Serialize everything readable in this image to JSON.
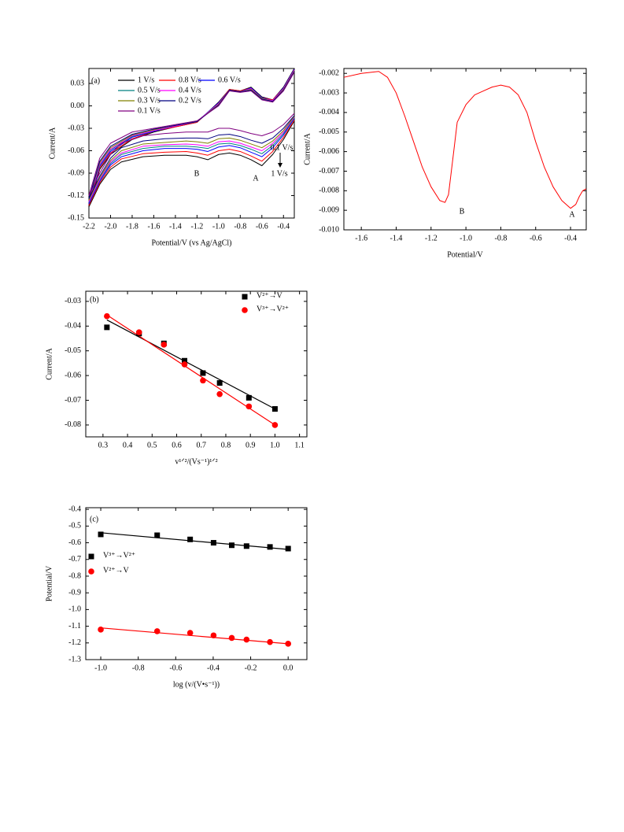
{
  "chart_data": [
    {
      "type": "line",
      "y_label": "Current/A",
      "x_label": "Potential/V (vs Ag/AgCl)",
      "xlim": [
        -2.2,
        -0.3
      ],
      "ylim": [
        -0.15,
        0.05
      ],
      "xticks": [
        -2.2,
        {
          "value": -2,
          "label": "-2.0"
        },
        -1.8,
        -1.6,
        -1.4,
        -1.2,
        {
          "value": -1,
          "label": "-1.0"
        },
        -0.8,
        -0.6,
        -0.4
      ],
      "yticks": [
        0.03,
        {
          "value": 0,
          "label": "0.00"
        },
        -0.03,
        -0.06,
        -0.09,
        -0.12,
        -0.15
      ],
      "annotations": [
        "(a)",
        "B",
        "A",
        "0.1 V/s",
        "1 V/s"
      ],
      "x": [
        -0.3,
        -0.4,
        -0.5,
        -0.6,
        -0.7,
        -0.8,
        -0.9,
        -1.0,
        -1.1,
        -1.2,
        -1.3,
        -1.5,
        -1.7,
        -1.9,
        -2.0,
        -2.1,
        -2.2,
        -2.1,
        -2.0,
        -1.8,
        -1.6,
        -1.4,
        -1.2,
        -1.0,
        -0.9,
        -0.8,
        -0.7,
        -0.6,
        -0.5,
        -0.4,
        -0.3
      ],
      "series": [
        {
          "name": "1 V/s",
          "color": "#000000",
          "values": [
            -0.02,
            -0.045,
            -0.065,
            -0.08,
            -0.072,
            -0.066,
            -0.063,
            -0.065,
            -0.072,
            -0.068,
            -0.066,
            -0.066,
            -0.068,
            -0.075,
            -0.085,
            -0.105,
            -0.135,
            -0.085,
            -0.065,
            -0.045,
            -0.035,
            -0.028,
            -0.022,
            0.005,
            0.022,
            0.02,
            0.025,
            0.012,
            0.008,
            0.025,
            0.05
          ]
        },
        {
          "name": "0.8 V/s",
          "color": "#ff0000",
          "values": [
            -0.019,
            -0.042,
            -0.061,
            -0.074,
            -0.067,
            -0.061,
            -0.058,
            -0.06,
            -0.066,
            -0.063,
            -0.061,
            -0.062,
            -0.064,
            -0.071,
            -0.082,
            -0.103,
            -0.133,
            -0.083,
            -0.063,
            -0.044,
            -0.034,
            -0.028,
            -0.022,
            0.004,
            0.022,
            0.02,
            0.024,
            0.011,
            0.008,
            0.024,
            0.049
          ]
        },
        {
          "name": "0.6 V/s",
          "color": "#0000ff",
          "values": [
            -0.017,
            -0.039,
            -0.056,
            -0.068,
            -0.062,
            -0.056,
            -0.053,
            -0.055,
            -0.061,
            -0.058,
            -0.057,
            -0.057,
            -0.06,
            -0.068,
            -0.079,
            -0.101,
            -0.131,
            -0.081,
            -0.061,
            -0.042,
            -0.034,
            -0.027,
            -0.021,
            0.004,
            0.021,
            0.019,
            0.024,
            0.011,
            0.007,
            0.024,
            0.049
          ]
        },
        {
          "name": "0.5 V/s",
          "color": "#008080",
          "values": [
            -0.016,
            -0.037,
            -0.053,
            -0.064,
            -0.058,
            -0.053,
            -0.05,
            -0.051,
            -0.057,
            -0.055,
            -0.054,
            -0.054,
            -0.057,
            -0.065,
            -0.077,
            -0.099,
            -0.129,
            -0.079,
            -0.059,
            -0.041,
            -0.033,
            -0.027,
            -0.021,
            0.003,
            0.021,
            0.019,
            0.023,
            0.01,
            0.007,
            0.023,
            0.048
          ]
        },
        {
          "name": "0.4 V/s",
          "color": "#ff00ff",
          "values": [
            -0.015,
            -0.035,
            -0.05,
            -0.06,
            -0.055,
            -0.05,
            -0.047,
            -0.048,
            -0.054,
            -0.052,
            -0.051,
            -0.052,
            -0.054,
            -0.063,
            -0.075,
            -0.098,
            -0.128,
            -0.078,
            -0.058,
            -0.04,
            -0.033,
            -0.027,
            -0.021,
            0.003,
            0.021,
            0.019,
            0.023,
            0.01,
            0.007,
            0.023,
            0.048
          ]
        },
        {
          "name": "0.3 V/s",
          "color": "#808000",
          "values": [
            -0.014,
            -0.033,
            -0.047,
            -0.056,
            -0.051,
            -0.046,
            -0.043,
            -0.044,
            -0.05,
            -0.048,
            -0.047,
            -0.049,
            -0.051,
            -0.06,
            -0.073,
            -0.096,
            -0.126,
            -0.076,
            -0.056,
            -0.039,
            -0.032,
            -0.026,
            -0.021,
            0.002,
            0.021,
            0.019,
            0.022,
            0.01,
            0.006,
            0.022,
            0.047
          ]
        },
        {
          "name": "0.2 V/s",
          "color": "#000080",
          "values": [
            -0.013,
            -0.03,
            -0.043,
            -0.05,
            -0.046,
            -0.041,
            -0.038,
            -0.039,
            -0.044,
            -0.043,
            -0.043,
            -0.044,
            -0.047,
            -0.056,
            -0.07,
            -0.094,
            -0.124,
            -0.074,
            -0.054,
            -0.038,
            -0.031,
            -0.026,
            -0.021,
            0.001,
            0.021,
            0.019,
            0.021,
            0.009,
            0.006,
            0.021,
            0.046
          ]
        },
        {
          "name": "0.1 V/s",
          "color": "#800080",
          "values": [
            -0.01,
            -0.025,
            -0.035,
            -0.04,
            -0.037,
            -0.033,
            -0.03,
            -0.03,
            -0.035,
            -0.035,
            -0.035,
            -0.037,
            -0.04,
            -0.05,
            -0.065,
            -0.09,
            -0.12,
            -0.07,
            -0.05,
            -0.035,
            -0.03,
            -0.025,
            -0.02,
            0.0,
            0.02,
            0.018,
            0.02,
            0.008,
            0.005,
            0.02,
            0.045
          ]
        }
      ]
    },
    {
      "type": "line",
      "y_label": "Current/A",
      "x_label": "Potential/V",
      "xlim": [
        -1.7,
        -0.31
      ],
      "ylim": [
        -0.01,
        -0.00175
      ],
      "xticks": [
        -1.6,
        -1.4,
        -1.2,
        {
          "value": -1,
          "label": "-1.0"
        },
        -0.8,
        -0.6,
        -0.4
      ],
      "yticks": [
        -0.002,
        -0.003,
        -0.004,
        -0.005,
        -0.006,
        -0.007,
        -0.008,
        -0.009,
        {
          "value": -0.01,
          "label": "-0.010"
        }
      ],
      "annotations": [
        "B",
        "A"
      ],
      "x": [
        -1.7,
        -1.6,
        -1.5,
        -1.45,
        -1.4,
        -1.35,
        -1.3,
        -1.25,
        -1.2,
        -1.15,
        -1.12,
        -1.1,
        -1.07,
        -1.05,
        -1.0,
        -0.95,
        -0.9,
        -0.85,
        -0.8,
        -0.75,
        -0.7,
        -0.65,
        -0.6,
        -0.55,
        -0.5,
        -0.45,
        -0.4,
        -0.37,
        -0.35,
        -0.33,
        -0.31
      ],
      "series": [
        {
          "color": "#ff0000",
          "values": [
            -0.0022,
            -0.002,
            -0.0019,
            -0.0022,
            -0.003,
            -0.0042,
            -0.0055,
            -0.0068,
            -0.0078,
            -0.0085,
            -0.0086,
            -0.0082,
            -0.006,
            -0.0045,
            -0.0036,
            -0.0031,
            -0.0029,
            -0.0027,
            -0.0026,
            -0.0027,
            -0.0031,
            -0.004,
            -0.0055,
            -0.0068,
            -0.0078,
            -0.0085,
            -0.0089,
            -0.0087,
            -0.0083,
            -0.008,
            -0.0079
          ]
        }
      ]
    },
    {
      "type": "scatter",
      "y_label": "Current/A",
      "x_label": "v¹ᐟ²/(Vs⁻¹)¹ᐟ²",
      "xlim": [
        0.23,
        1.13
      ],
      "ylim": [
        -0.0848,
        -0.0259
      ],
      "xticks": [
        0.3,
        0.4,
        0.5,
        0.6,
        0.7,
        0.8,
        0.9,
        {
          "value": 1,
          "label": "1.0"
        },
        1.1
      ],
      "yticks": [
        -0.03,
        -0.04,
        -0.05,
        -0.06,
        -0.07,
        -0.08
      ],
      "annotations": [
        "(b)"
      ],
      "x": [
        0.316,
        0.447,
        0.548,
        0.632,
        0.707,
        0.775,
        0.894,
        1.0
      ],
      "series": [
        {
          "name": "V²⁺→V",
          "color": "#000000",
          "marker": "square",
          "values": [
            -0.0405,
            -0.043,
            -0.047,
            -0.054,
            -0.059,
            -0.063,
            -0.069,
            -0.0735
          ]
        },
        {
          "name": "V³⁺→V²⁺",
          "color": "#ff0000",
          "marker": "circle",
          "values": [
            -0.036,
            -0.0425,
            -0.0475,
            -0.0555,
            -0.062,
            -0.0675,
            -0.0725,
            -0.08
          ]
        }
      ],
      "fits": [
        {
          "color": "#000000",
          "x": [
            0.316,
            1.0
          ],
          "values": [
            -0.0375,
            -0.0735
          ]
        },
        {
          "color": "#ff0000",
          "x": [
            0.316,
            1.0
          ],
          "values": [
            -0.0355,
            -0.08
          ]
        }
      ]
    },
    {
      "type": "scatter",
      "y_label": "Potential/V",
      "x_label": "log (v/(V•s⁻¹))",
      "xlim": [
        -1.08,
        0.1
      ],
      "ylim": [
        -1.3,
        -0.39
      ],
      "xticks": [
        {
          "value": -1,
          "label": "-1.0"
        },
        -0.8,
        -0.6,
        -0.4,
        -0.2,
        {
          "value": 0,
          "label": "0.0"
        }
      ],
      "yticks": [
        -0.4,
        -0.5,
        -0.6,
        -0.7,
        -0.8,
        -0.9,
        {
          "value": -1,
          "label": "-1.0"
        },
        -1.1,
        -1.2,
        -1.3
      ],
      "annotations": [
        "(c)"
      ],
      "x": [
        -1.0,
        -0.699,
        -0.523,
        -0.398,
        -0.301,
        -0.222,
        -0.097,
        0.0
      ],
      "series": [
        {
          "name": "V³⁺→V²⁺",
          "color": "#000000",
          "marker": "square",
          "values": [
            -0.55,
            -0.555,
            -0.58,
            -0.6,
            -0.615,
            -0.62,
            -0.625,
            -0.635
          ]
        },
        {
          "name": "V²⁺→V",
          "color": "#ff0000",
          "marker": "circle",
          "values": [
            -1.12,
            -1.13,
            -1.14,
            -1.155,
            -1.17,
            -1.18,
            -1.195,
            -1.205
          ]
        }
      ],
      "fits": [
        {
          "color": "#000000",
          "x": [
            -1.0,
            0.0
          ],
          "values": [
            -0.54,
            -0.64
          ]
        },
        {
          "color": "#ff0000",
          "x": [
            -1.0,
            0.0
          ],
          "values": [
            -1.11,
            -1.205
          ]
        }
      ]
    }
  ]
}
